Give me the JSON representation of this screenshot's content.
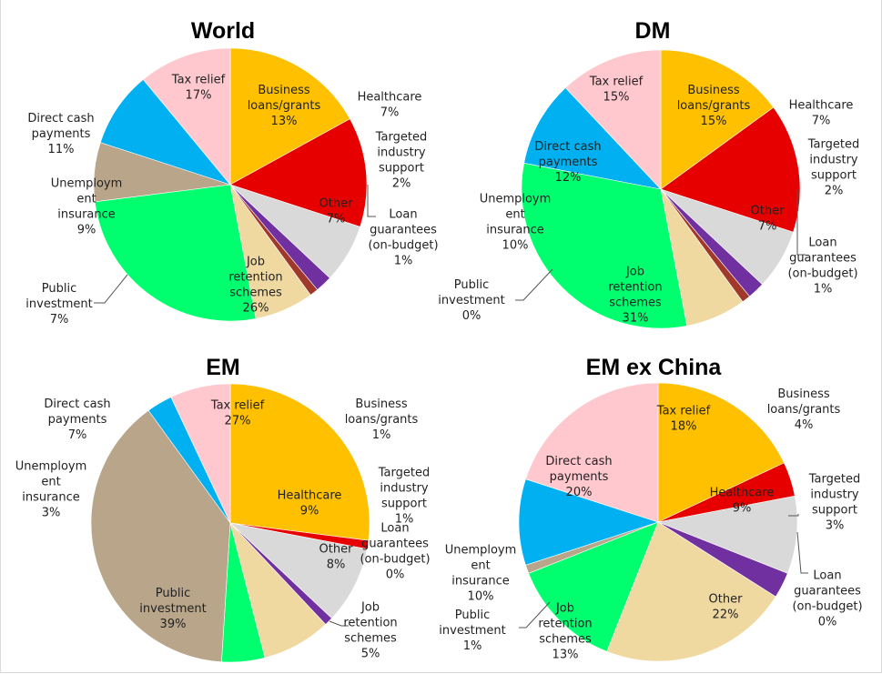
{
  "chart_data": [
    {
      "type": "pie",
      "title": "World",
      "slices": [
        {
          "name": "Tax relief",
          "value": 17,
          "label": [
            "Tax relief",
            "17%"
          ],
          "color": "#ffc000"
        },
        {
          "name": "Business loans/grants",
          "value": 13,
          "label": [
            "Business",
            "loans/grants",
            "13%"
          ],
          "color": "#e60000"
        },
        {
          "name": "Healthcare",
          "value": 7,
          "label": [
            "Healthcare",
            "7%"
          ],
          "color": "#d9d9d9"
        },
        {
          "name": "Targeted industry support",
          "value": 2,
          "label": [
            "Targeted",
            "industry",
            "support",
            "2%"
          ],
          "color": "#7030a0"
        },
        {
          "name": "Loan guarantees (on-budget)",
          "value": 1,
          "label": [
            "Loan",
            "guarantees",
            "(on-budget)",
            "1%"
          ],
          "color": "#a0392b"
        },
        {
          "name": "Other",
          "value": 7,
          "label": [
            "Other",
            "7%"
          ],
          "color": "#f0d9a0"
        },
        {
          "name": "Job retention schemes",
          "value": 26,
          "label": [
            "Job",
            "retention",
            "schemes",
            "26%"
          ],
          "color": "#00ff6e"
        },
        {
          "name": "Public investment",
          "value": 7,
          "label": [
            "Public",
            "investment",
            "7%"
          ],
          "color": "#b8a58a"
        },
        {
          "name": "Unemployment insurance",
          "value": 9,
          "label": [
            "Unemploym",
            "ent",
            "insurance",
            "9%"
          ],
          "color": "#00b0f0"
        },
        {
          "name": "Direct cash payments",
          "value": 11,
          "label": [
            "Direct cash",
            "payments",
            "11%"
          ],
          "color": "#ffc7ce"
        }
      ]
    },
    {
      "type": "pie",
      "title": "DM",
      "slices": [
        {
          "name": "Tax relief",
          "value": 15,
          "label": [
            "Tax relief",
            "15%"
          ],
          "color": "#ffc000"
        },
        {
          "name": "Business loans/grants",
          "value": 15,
          "label": [
            "Business",
            "loans/grants",
            "15%"
          ],
          "color": "#e60000"
        },
        {
          "name": "Healthcare",
          "value": 7,
          "label": [
            "Healthcare",
            "7%"
          ],
          "color": "#d9d9d9"
        },
        {
          "name": "Targeted industry support",
          "value": 2,
          "label": [
            "Targeted",
            "industry",
            "support",
            "2%"
          ],
          "color": "#7030a0"
        },
        {
          "name": "Loan guarantees (on-budget)",
          "value": 1,
          "label": [
            "Loan",
            "guarantees",
            "(on-budget)",
            "1%"
          ],
          "color": "#a0392b"
        },
        {
          "name": "Other",
          "value": 7,
          "label": [
            "Other",
            "7%"
          ],
          "color": "#f0d9a0"
        },
        {
          "name": "Job retention schemes",
          "value": 31,
          "label": [
            "Job",
            "retention",
            "schemes",
            "31%"
          ],
          "color": "#00ff6e"
        },
        {
          "name": "Public investment",
          "value": 0,
          "label": [
            "Public",
            "investment",
            "0%"
          ],
          "color": "#b8a58a"
        },
        {
          "name": "Unemployment insurance",
          "value": 10,
          "label": [
            "Unemploym",
            "ent",
            "insurance",
            "10%"
          ],
          "color": "#00b0f0"
        },
        {
          "name": "Direct cash payments",
          "value": 12,
          "label": [
            "Direct cash",
            "payments",
            "12%"
          ],
          "color": "#ffc7ce"
        }
      ]
    },
    {
      "type": "pie",
      "title": "EM",
      "slices": [
        {
          "name": "Tax relief",
          "value": 27,
          "label": [
            "Tax relief",
            "27%"
          ],
          "color": "#ffc000"
        },
        {
          "name": "Business loans/grants",
          "value": 1,
          "label": [
            "Business",
            "loans/grants",
            "1%"
          ],
          "color": "#e60000"
        },
        {
          "name": "Healthcare",
          "value": 9,
          "label": [
            "Healthcare",
            "9%"
          ],
          "color": "#d9d9d9"
        },
        {
          "name": "Targeted industry support",
          "value": 1,
          "label": [
            "Targeted",
            "industry",
            "support",
            "1%"
          ],
          "color": "#7030a0"
        },
        {
          "name": "Loan guarantees (on-budget)",
          "value": 0,
          "label": [
            "Loan",
            "guarantees",
            "(on-budget)",
            "0%"
          ],
          "color": "#a0392b"
        },
        {
          "name": "Other",
          "value": 8,
          "label": [
            "Other",
            "8%"
          ],
          "color": "#f0d9a0"
        },
        {
          "name": "Job retention schemes",
          "value": 5,
          "label": [
            "Job",
            "retention",
            "schemes",
            "5%"
          ],
          "color": "#00ff6e"
        },
        {
          "name": "Public investment",
          "value": 39,
          "label": [
            "Public",
            "investment",
            "39%"
          ],
          "color": "#b8a58a"
        },
        {
          "name": "Unemployment insurance",
          "value": 3,
          "label": [
            "Unemploym",
            "ent",
            "insurance",
            "3%"
          ],
          "color": "#00b0f0"
        },
        {
          "name": "Direct cash payments",
          "value": 7,
          "label": [
            "Direct cash",
            "payments",
            "7%"
          ],
          "color": "#ffc7ce"
        }
      ]
    },
    {
      "type": "pie",
      "title": "EM ex China",
      "slices": [
        {
          "name": "Tax relief",
          "value": 18,
          "label": [
            "Tax relief",
            "18%"
          ],
          "color": "#ffc000"
        },
        {
          "name": "Business loans/grants",
          "value": 4,
          "label": [
            "Business",
            "loans/grants",
            "4%"
          ],
          "color": "#e60000"
        },
        {
          "name": "Healthcare",
          "value": 9,
          "label": [
            "Healthcare",
            "9%"
          ],
          "color": "#d9d9d9"
        },
        {
          "name": "Targeted industry support",
          "value": 3,
          "label": [
            "Targeted",
            "industry",
            "support",
            "3%"
          ],
          "color": "#7030a0"
        },
        {
          "name": "Loan guarantees (on-budget)",
          "value": 0,
          "label": [
            "Loan",
            "guarantees",
            "(on-budget)",
            "0%"
          ],
          "color": "#a0392b"
        },
        {
          "name": "Other",
          "value": 22,
          "label": [
            "Other",
            "22%"
          ],
          "color": "#f0d9a0"
        },
        {
          "name": "Job retention schemes",
          "value": 13,
          "label": [
            "Job",
            "retention",
            "schemes",
            "13%"
          ],
          "color": "#00ff6e"
        },
        {
          "name": "Public investment",
          "value": 1,
          "label": [
            "Public",
            "investment",
            "1%"
          ],
          "color": "#b8a58a"
        },
        {
          "name": "Unemployment insurance",
          "value": 10,
          "label": [
            "Unemploym",
            "ent",
            "insurance",
            "10%"
          ],
          "color": "#00b0f0"
        },
        {
          "name": "Direct cash payments",
          "value": 20,
          "label": [
            "Direct cash",
            "payments",
            "20%"
          ],
          "color": "#ffc7ce"
        }
      ]
    }
  ]
}
